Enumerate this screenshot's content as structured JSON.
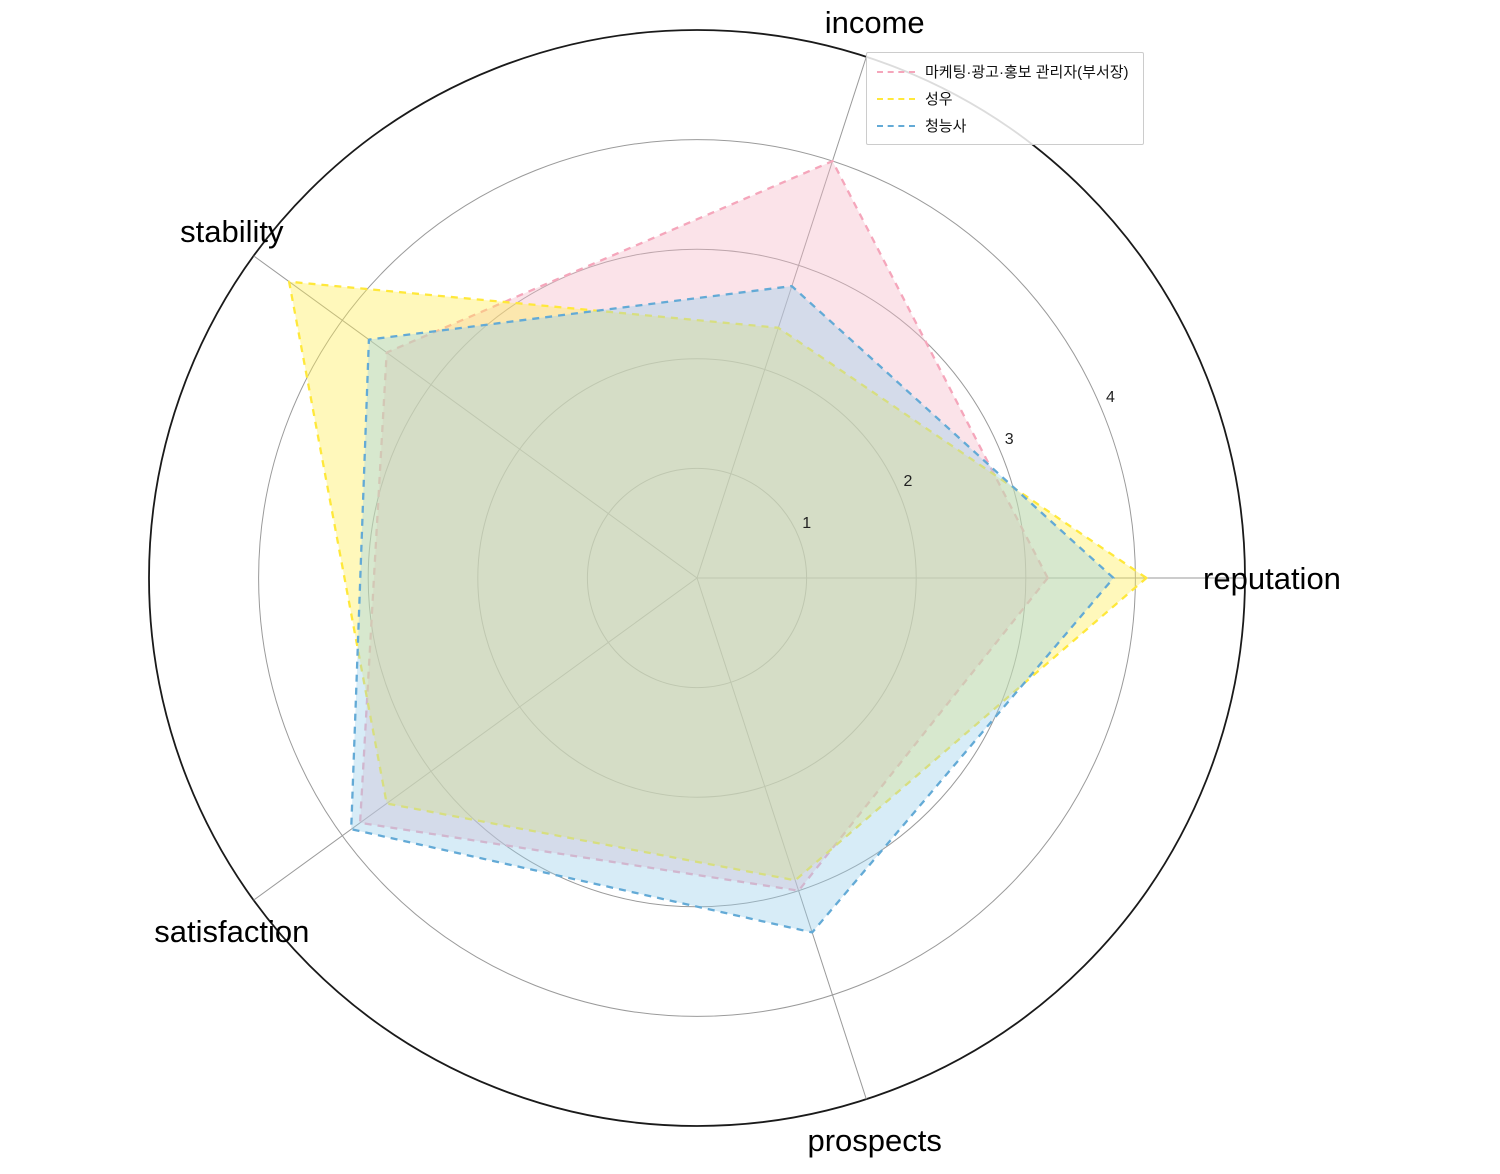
{
  "chart_data": {
    "type": "radar",
    "categories": [
      "reputation",
      "income",
      "stability",
      "satisfaction",
      "prospects"
    ],
    "angles_deg": [
      0,
      72,
      144,
      216,
      288
    ],
    "r_ticks": [
      1,
      2,
      3,
      4
    ],
    "r_max": 5,
    "tick_label_angle_deg": 22.5,
    "grid": true,
    "legend_position": "top-center",
    "grid_color": "#9a9a9a",
    "outer_circle_color": "#1a1a1a",
    "series": [
      {
        "name": "마케팅·광고·홍보 관리자(부서장)",
        "color": "#f5a6bb",
        "fill": "#f6b8c8",
        "values": [
          3.2,
          4.0,
          3.5,
          3.8,
          3.0
        ]
      },
      {
        "name": "성우",
        "color": "#ffe83a",
        "fill": "#ffee55",
        "values": [
          4.1,
          2.4,
          4.6,
          3.5,
          2.9
        ]
      },
      {
        "name": "청능사",
        "color": "#63aad6",
        "fill": "#9cd0ea",
        "values": [
          3.8,
          2.8,
          3.7,
          3.9,
          3.4
        ]
      }
    ]
  }
}
